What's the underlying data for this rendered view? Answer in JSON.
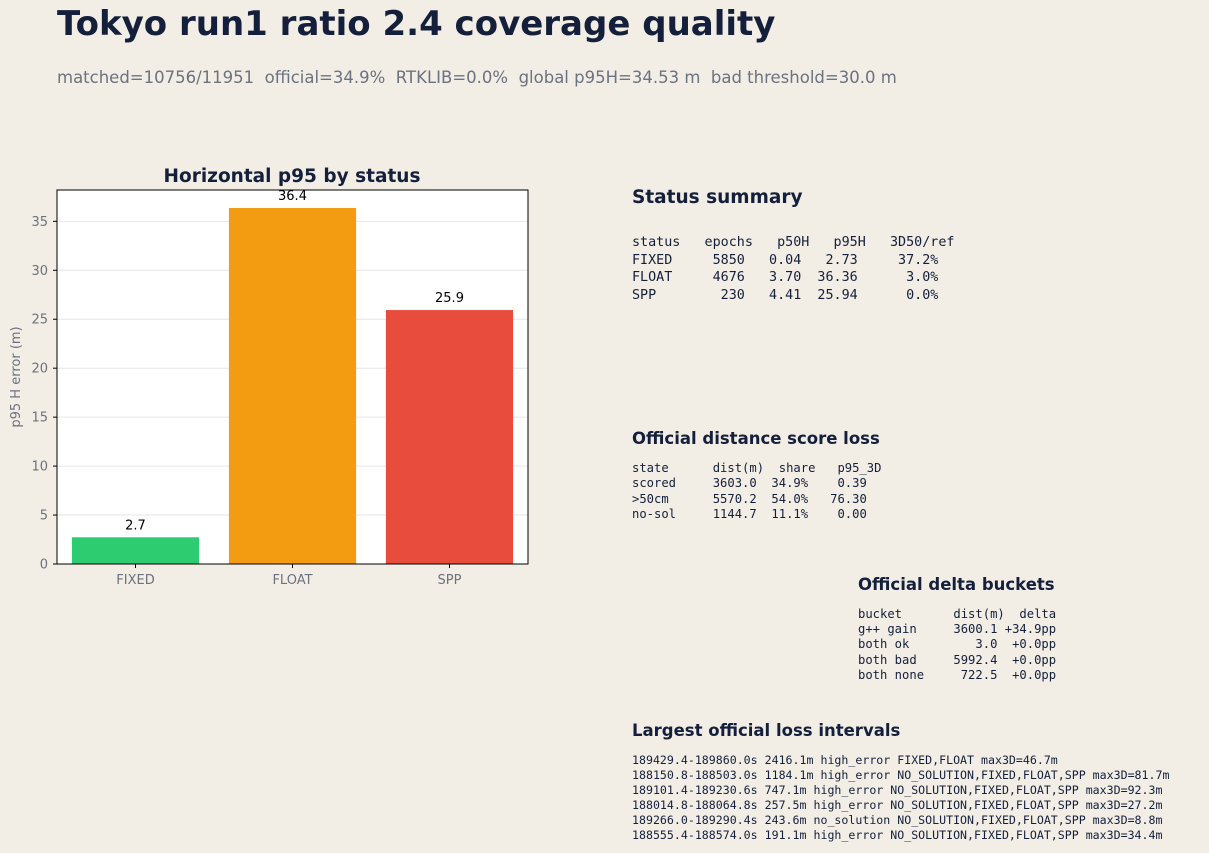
{
  "header": {
    "title": "Tokyo run1 ratio 2.4 coverage quality",
    "subtitle": "matched=10756/11951  official=34.9%  RTKLIB=0.0%  global p95H=34.53 m  bad threshold=30.0 m"
  },
  "chart_data": {
    "type": "bar",
    "title": "Horizontal p95 by status",
    "xlabel": "",
    "ylabel": "p95 H error (m)",
    "categories": [
      "FIXED",
      "FLOAT",
      "SPP"
    ],
    "values": [
      2.73,
      36.36,
      25.94
    ],
    "value_labels": [
      "2.7",
      "36.4",
      "25.9"
    ],
    "colors": [
      "#2ecc71",
      "#f39c12",
      "#e74c3c"
    ],
    "ylim": [
      0,
      38.2
    ],
    "yticks": [
      0,
      5,
      10,
      15,
      20,
      25,
      30,
      35
    ],
    "grid": true
  },
  "status_summary": {
    "title": "Status summary",
    "lines": [
      "status   epochs   p50H   p95H   3D50/ref",
      "FIXED     5850   0.04   2.73     37.2%",
      "FLOAT     4676   3.70  36.36      3.0%",
      "SPP        230   4.41  25.94      0.0%"
    ]
  },
  "official_loss": {
    "title": "Official distance score loss",
    "lines": [
      "state      dist(m)  share   p95_3D",
      "scored     3603.0  34.9%    0.39",
      ">50cm      5570.2  54.0%   76.30",
      "no-sol     1144.7  11.1%    0.00"
    ]
  },
  "delta_buckets": {
    "title": "Official delta buckets",
    "lines": [
      "bucket       dist(m)  delta",
      "g++ gain     3600.1 +34.9pp",
      "both ok         3.0  +0.0pp",
      "both bad     5992.4  +0.0pp",
      "both none     722.5  +0.0pp"
    ]
  },
  "loss_intervals": {
    "title": "Largest official loss intervals",
    "lines": [
      "189429.4-189860.0s 2416.1m high_error FIXED,FLOAT max3D=46.7m",
      "188150.8-188503.0s 1184.1m high_error NO_SOLUTION,FIXED,FLOAT,SPP max3D=81.7m",
      "189101.4-189230.6s 747.1m high_error NO_SOLUTION,FIXED,FLOAT,SPP max3D=92.3m",
      "188014.8-188064.8s 257.5m high_error NO_SOLUTION,FIXED,FLOAT,SPP max3D=27.2m",
      "189266.0-189290.4s 243.6m no_solution NO_SOLUTION,FIXED,FLOAT,SPP max3D=8.8m",
      "188555.4-188574.0s 191.1m high_error NO_SOLUTION,FIXED,FLOAT,SPP max3D=34.4m"
    ]
  }
}
